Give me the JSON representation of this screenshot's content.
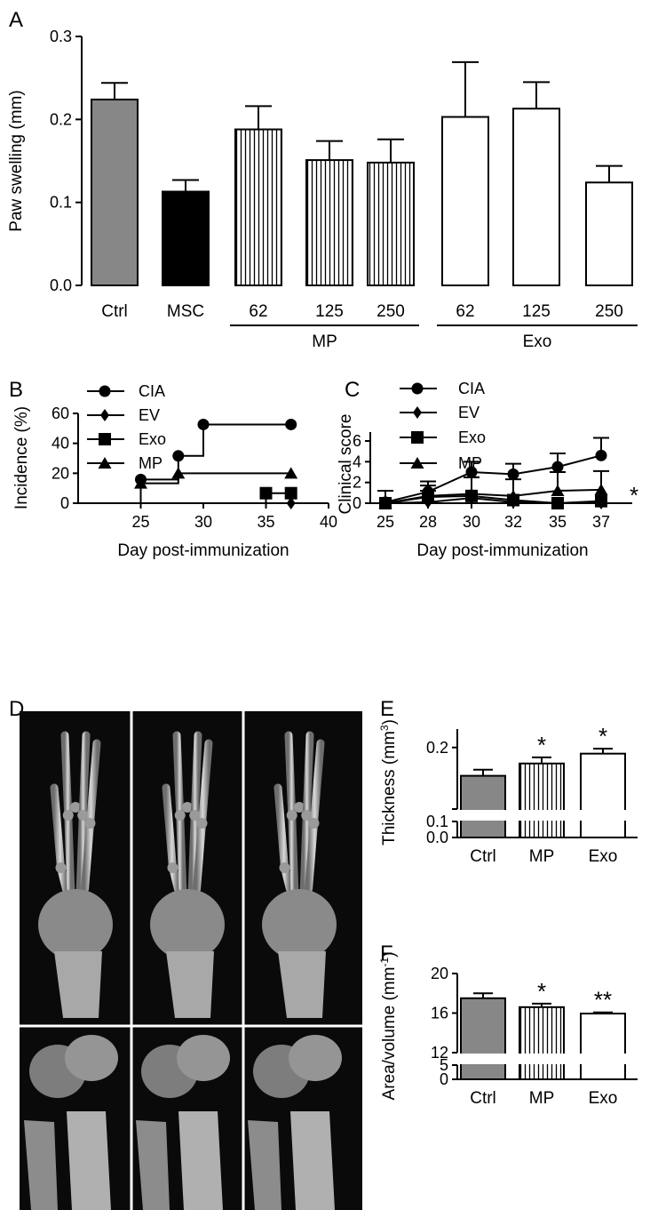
{
  "chart_data": [
    {
      "panel": "A",
      "type": "bar",
      "ylabel": "Paw swelling (mm)",
      "ylim": [
        0,
        0.3
      ],
      "yticks": [
        "0.0",
        "0.1",
        "0.2",
        "0.3"
      ],
      "categories": [
        "Ctrl",
        "MSC",
        "62",
        "125",
        "250",
        "62",
        "125",
        "250"
      ],
      "values": [
        0.224,
        0.113,
        0.188,
        0.151,
        0.148,
        0.203,
        0.213,
        0.124
      ],
      "errors": [
        0.02,
        0.014,
        0.028,
        0.023,
        0.028,
        0.066,
        0.032,
        0.02
      ],
      "fills": [
        "gray",
        "black",
        "striped",
        "striped",
        "striped",
        "white",
        "white",
        "white"
      ],
      "groups": [
        {
          "label": "MP",
          "members": [
            2,
            3,
            4
          ]
        },
        {
          "label": "Exo",
          "members": [
            5,
            6,
            7
          ]
        }
      ]
    },
    {
      "panel": "B",
      "type": "line",
      "xlabel": "Day post-immunization",
      "ylabel": "Incidence (%)",
      "xlim": [
        20,
        40
      ],
      "ylim": [
        0,
        60
      ],
      "xticks": [
        "25",
        "30",
        "35",
        "40"
      ],
      "yticks": [
        "0",
        "20",
        "40",
        "60"
      ],
      "legend": [
        "CIA",
        "EV",
        "Exo",
        "MP"
      ],
      "series": [
        {
          "name": "CIA",
          "marker": "circle",
          "x": [
            25,
            28,
            30,
            37
          ],
          "y": [
            15.8,
            31.6,
            52.6,
            52.6
          ]
        },
        {
          "name": "EV",
          "marker": "diamond",
          "x": [
            37
          ],
          "y": [
            0
          ]
        },
        {
          "name": "Exo",
          "marker": "square",
          "x": [
            35,
            37
          ],
          "y": [
            6.7,
            6.7
          ]
        },
        {
          "name": "MP",
          "marker": "triangle",
          "x": [
            25,
            28,
            37
          ],
          "y": [
            13.3,
            20,
            20
          ]
        }
      ]
    },
    {
      "panel": "C",
      "type": "line",
      "xlabel": "Day post-immunization",
      "ylabel": "Clinical score",
      "ylim": [
        0,
        7
      ],
      "categories": [
        "25",
        "28",
        "30",
        "32",
        "35",
        "37"
      ],
      "yticks": [
        "0",
        "2",
        "4",
        "6"
      ],
      "legend": [
        "CIA",
        "EV",
        "Exo",
        "MP"
      ],
      "annotation": "*",
      "series": [
        {
          "name": "CIA",
          "marker": "circle",
          "values": [
            0.1,
            1.1,
            3.0,
            2.8,
            3.5,
            4.6
          ],
          "errors": [
            1.1,
            1.0,
            1.0,
            1.0,
            1.3,
            1.7
          ]
        },
        {
          "name": "EV",
          "marker": "diamond",
          "values": [
            0,
            0.1,
            0.5,
            0.1,
            0,
            0
          ],
          "errors": [
            0,
            0,
            0,
            0,
            0,
            0
          ]
        },
        {
          "name": "Exo",
          "marker": "square",
          "values": [
            0,
            0.6,
            0.7,
            0.3,
            0,
            0.2
          ],
          "errors": [
            0,
            0.6,
            1.8,
            0,
            0,
            0
          ]
        },
        {
          "name": "MP",
          "marker": "triangle",
          "values": [
            0,
            0.7,
            0.9,
            0.7,
            1.2,
            1.3
          ],
          "errors": [
            0,
            1.0,
            1.6,
            1.6,
            1.8,
            1.8
          ]
        }
      ]
    },
    {
      "panel": "E",
      "type": "bar",
      "ylabel": "Thickness (mm3)",
      "ylabel_main": "Thickness (mm",
      "ylabel_sup": "3",
      "ylabel_close": ")",
      "categories": [
        "Ctrl",
        "MP",
        "Exo"
      ],
      "values": [
        0.177,
        0.187,
        0.195
      ],
      "errors": [
        0.005,
        0.005,
        0.004
      ],
      "fills": [
        "gray",
        "striped",
        "white"
      ],
      "yticks": [
        "0.0",
        "0.1",
        "0.2"
      ],
      "axis_break": [
        0.1,
        0.15
      ],
      "significance": [
        "",
        "*",
        "*"
      ]
    },
    {
      "panel": "F",
      "type": "bar",
      "ylabel": "Area/volume (mm-1)",
      "ylabel_main": "Area/volume (mm",
      "ylabel_sup": "-1",
      "ylabel_close": ")",
      "categories": [
        "Ctrl",
        "MP",
        "Exo"
      ],
      "values": [
        17.5,
        16.6,
        15.95
      ],
      "errors": [
        0.5,
        0.35,
        0.12
      ],
      "fills": [
        "gray",
        "striped",
        "white"
      ],
      "yticks": [
        "0",
        "5",
        "12",
        "16",
        "20"
      ],
      "axis_break": [
        5,
        12
      ],
      "significance": [
        "",
        "*",
        "**"
      ]
    }
  ],
  "panels": {
    "A": "A",
    "B": "B",
    "C": "C",
    "D": "D",
    "E": "E",
    "F": "F"
  },
  "colors": {
    "gray": "#878787",
    "black": "#000000",
    "white": "#ffffff",
    "image_bg": "#0a0a0a",
    "bone": "#bdbdbd"
  },
  "image_panel": {
    "description_icons": [
      "paw-xray-1",
      "paw-xray-2",
      "paw-xray-3",
      "wrist-xray-1",
      "wrist-xray-2",
      "wrist-xray-3"
    ]
  }
}
